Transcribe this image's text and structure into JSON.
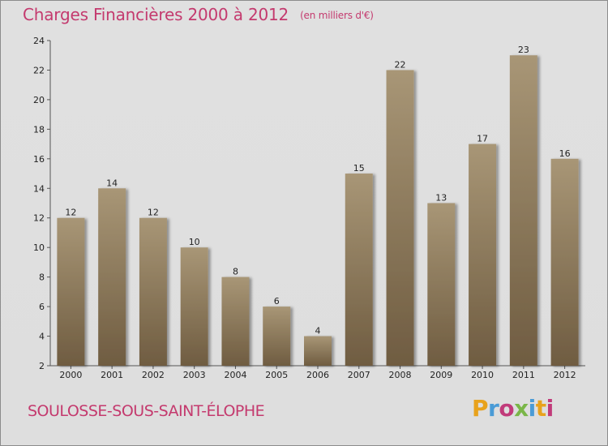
{
  "header": {
    "title": "Charges Financières 2000 à 2012",
    "unit": "(en milliers d'€)"
  },
  "footer": {
    "commune": "SOULOSSE-SOUS-SAINT-ÉLOPHE",
    "logo_letters": [
      "P",
      "r",
      "o",
      "x",
      "i",
      "t",
      "i"
    ],
    "logo_colors": [
      "#e8a21c",
      "#4a9bd6",
      "#c13b7a",
      "#7ab648",
      "#4a9bd6",
      "#e8a21c",
      "#c13b7a"
    ]
  },
  "colors": {
    "bar_top": "#a89676",
    "bar_bottom": "#6f5c41",
    "title": "#c43a6e"
  },
  "chart_data": {
    "type": "bar",
    "categories": [
      "2000",
      "2001",
      "2002",
      "2003",
      "2004",
      "2005",
      "2006",
      "2007",
      "2008",
      "2009",
      "2010",
      "2011",
      "2012"
    ],
    "values": [
      12,
      14,
      12,
      10,
      8,
      6,
      4,
      15,
      22,
      13,
      17,
      23,
      16
    ],
    "value_labels": [
      "12",
      "14",
      "12",
      "10",
      "8",
      "6",
      "4",
      "15",
      "22",
      "13",
      "17",
      "23",
      "16"
    ],
    "yticks": [
      "2",
      "4",
      "6",
      "8",
      "10",
      "12",
      "14",
      "16",
      "18",
      "20",
      "22",
      "24"
    ],
    "ylim": [
      2,
      24
    ],
    "grid": false
  }
}
